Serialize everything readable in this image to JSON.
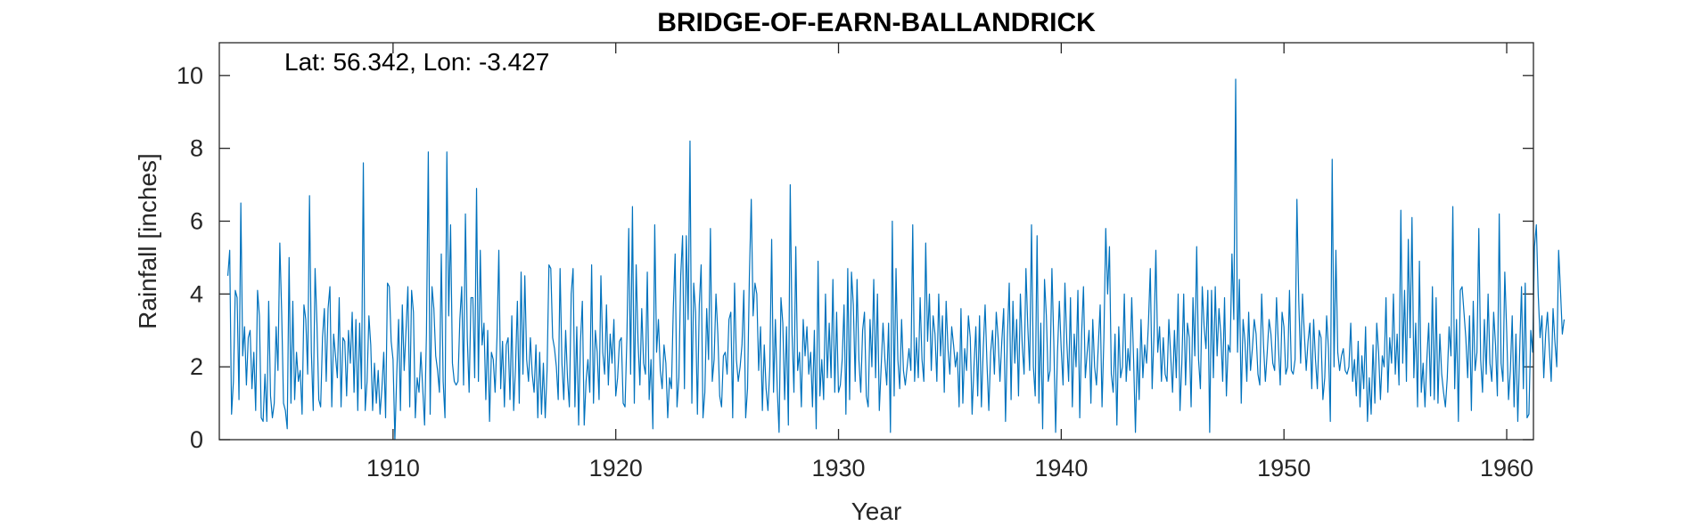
{
  "chart_data": {
    "type": "line",
    "title": "BRIDGE-OF-EARN-BALLANDRICK",
    "annotation": "Lat: 56.342, Lon: -3.427",
    "xlabel": "Year",
    "ylabel": "Rainfall [inches]",
    "xlim": [
      1902.2,
      1961.2
    ],
    "ylim": [
      0,
      10.9
    ],
    "xticks": [
      1910,
      1920,
      1930,
      1940,
      1950,
      1960
    ],
    "yticks": [
      0,
      2,
      4,
      6,
      8,
      10
    ],
    "grid": false,
    "line_color": "#0072BD",
    "series": [
      {
        "x_start": 1902.583,
        "x_step": 0.08333,
        "values": [
          4.5,
          5.2,
          0.7,
          1.6,
          4.1,
          3.9,
          1.1,
          6.5,
          2.3,
          3.1,
          1.5,
          2.8,
          3.0,
          1.4,
          2.4,
          0.8,
          4.1,
          3.4,
          0.6,
          0.5,
          1.8,
          0.5,
          3.8,
          1.2,
          0.6,
          1.0,
          3.1,
          1.9,
          5.4,
          3.5,
          1.0,
          0.8,
          0.3,
          5.0,
          1.0,
          3.8,
          1.1,
          2.4,
          1.6,
          1.9,
          0.7,
          3.7,
          3.3,
          1.8,
          6.7,
          2.4,
          0.8,
          4.7,
          3.2,
          1.1,
          0.9,
          2.8,
          3.6,
          1.6,
          3.6,
          4.2,
          0.9,
          2.9,
          2.3,
          1.7,
          3.9,
          0.9,
          2.8,
          2.7,
          1.2,
          3.0,
          2.1,
          3.5,
          1.3,
          3.3,
          0.8,
          3.2,
          1.4,
          7.6,
          0.8,
          1.6,
          3.4,
          2.6,
          0.8,
          2.1,
          1.0,
          1.9,
          0.7,
          1.4,
          2.4,
          0.6,
          4.3,
          4.2,
          2.7,
          2.2,
          0.0,
          1.8,
          3.3,
          0.8,
          3.7,
          1.9,
          3.0,
          4.2,
          0.9,
          4.1,
          3.5,
          0.6,
          1.7,
          1.3,
          2.4,
          1.4,
          0.4,
          2.9,
          7.9,
          0.7,
          4.2,
          3.6,
          2.3,
          1.9,
          1.3,
          5.1,
          1.6,
          0.6,
          7.9,
          3.4,
          5.9,
          2.1,
          1.6,
          1.5,
          1.6,
          3.3,
          4.2,
          1.5,
          6.2,
          2.8,
          1.3,
          3.9,
          3.9,
          1.7,
          6.9,
          1.6,
          5.2,
          2.6,
          3.2,
          1.1,
          3.0,
          0.5,
          2.4,
          2.2,
          1.3,
          2.8,
          5.2,
          1.4,
          2.7,
          0.9,
          2.6,
          2.8,
          1.1,
          3.4,
          0.8,
          2.0,
          3.8,
          1.0,
          4.6,
          1.8,
          4.5,
          2.2,
          1.6,
          2.8,
          1.8,
          1.3,
          2.6,
          0.6,
          2.4,
          0.7,
          2.1,
          0.6,
          1.9,
          4.8,
          4.7,
          2.8,
          2.5,
          2.0,
          1.1,
          4.7,
          2.1,
          1.1,
          3.0,
          1.7,
          0.9,
          4.0,
          4.7,
          0.9,
          3.1,
          0.4,
          2.7,
          3.8,
          0.4,
          1.6,
          2.2,
          1.3,
          4.8,
          1.0,
          3.0,
          2.4,
          1.1,
          4.5,
          2.4,
          1.8,
          3.7,
          1.5,
          2.9,
          2.1,
          3.3,
          1.2,
          1.7,
          2.7,
          2.8,
          1.0,
          0.9,
          2.8,
          5.8,
          1.8,
          6.4,
          1.0,
          4.8,
          2.7,
          1.5,
          3.6,
          2.1,
          1.8,
          4.6,
          1.1,
          2.2,
          0.3,
          5.9,
          2.4,
          3.3,
          1.9,
          1.4,
          2.6,
          2.1,
          0.6,
          1.7,
          1.4,
          3.6,
          5.1,
          0.9,
          1.7,
          4.5,
          5.6,
          1.4,
          5.6,
          3.3,
          8.2,
          1.0,
          4.3,
          3.5,
          0.7,
          3.7,
          4.8,
          0.6,
          1.3,
          3.6,
          2.2,
          5.8,
          1.6,
          2.2,
          4.0,
          2.9,
          1.2,
          0.9,
          2.3,
          2.4,
          1.8,
          3.3,
          3.5,
          0.6,
          4.3,
          2.2,
          1.6,
          2.0,
          2.6,
          4.1,
          0.6,
          1.4,
          4.5,
          6.6,
          3.4,
          4.3,
          4.0,
          1.9,
          3.1,
          0.8,
          2.6,
          1.4,
          0.8,
          2.0,
          5.5,
          1.3,
          3.3,
          1.4,
          0.2,
          3.9,
          3.2,
          1.1,
          3.1,
          0.4,
          7.0,
          2.9,
          1.3,
          5.3,
          1.9,
          2.4,
          0.9,
          3.3,
          2.3,
          3.1,
          1.8,
          2.4,
          0.9,
          3.0,
          0.3,
          4.9,
          1.2,
          2.2,
          1.1,
          4.0,
          1.7,
          3.2,
          1.7,
          4.4,
          1.3,
          3.5,
          1.3,
          1.5,
          2.2,
          3.7,
          0.7,
          4.7,
          1.1,
          4.6,
          3.7,
          1.6,
          4.4,
          2.2,
          1.3,
          3.0,
          3.5,
          1.2,
          0.9,
          3.3,
          2.0,
          4.4,
          1.7,
          4.0,
          0.8,
          2.0,
          3.2,
          2.2,
          1.5,
          3.2,
          0.2,
          6.0,
          1.2,
          4.7,
          2.2,
          1.4,
          3.3,
          1.9,
          1.5,
          2.0,
          2.5,
          1.9,
          5.9,
          1.6,
          2.8,
          1.7,
          3.9,
          2.2,
          1.6,
          5.4,
          2.7,
          4.0,
          1.9,
          3.4,
          2.9,
          1.6,
          4.0,
          2.3,
          3.4,
          1.3,
          3.8,
          2.5,
          1.8,
          3.1,
          2.6,
          2.0,
          2.4,
          0.9,
          3.6,
          1.0,
          2.5,
          1.9,
          3.4,
          2.8,
          0.7,
          2.0,
          3.1,
          1.2,
          3.4,
          0.9,
          2.5,
          3.7,
          2.1,
          0.8,
          2.4,
          3.0,
          1.8,
          3.5,
          2.8,
          1.6,
          2.7,
          3.6,
          0.5,
          2.8,
          4.3,
          1.1,
          3.8,
          2.1,
          3.3,
          1.2,
          4.0,
          2.6,
          1.8,
          4.7,
          3.1,
          1.9,
          5.9,
          2.0,
          1.2,
          5.6,
          1.0,
          3.2,
          0.3,
          4.4,
          3.4,
          1.6,
          1.9,
          4.7,
          2.7,
          0.2,
          2.4,
          3.8,
          2.5,
          1.5,
          4.3,
          2.7,
          1.6,
          3.9,
          0.9,
          2.9,
          2.0,
          4.1,
          0.6,
          2.9,
          4.2,
          1.7,
          2.4,
          3.0,
          1.0,
          3.3,
          2.0,
          1.5,
          2.6,
          3.7,
          0.9,
          2.8,
          5.8,
          4.0,
          5.3,
          1.8,
          1.3,
          2.9,
          0.4,
          3.1,
          1.7,
          2.0,
          4.0,
          1.6,
          2.5,
          1.9,
          3.9,
          2.2,
          0.2,
          2.5,
          1.1,
          3.3,
          1.7,
          2.6,
          2.1,
          3.2,
          4.7,
          1.4,
          2.9,
          5.2,
          2.4,
          3.1,
          1.6,
          2.8,
          1.8,
          1.6,
          3.3,
          2.3,
          1.3,
          3.0,
          1.7,
          4.0,
          0.8,
          2.1,
          4.0,
          1.5,
          3.2,
          2.8,
          0.9,
          3.9,
          2.3,
          5.3,
          2.2,
          1.4,
          4.2,
          3.1,
          2.5,
          4.1,
          0.2,
          4.1,
          1.7,
          4.2,
          2.3,
          3.6,
          2.9,
          1.6,
          3.9,
          1.2,
          2.6,
          2.4,
          5.1,
          3.3,
          9.9,
          2.4,
          4.4,
          1.0,
          3.3,
          2.7,
          1.6,
          3.5,
          1.9,
          2.5,
          3.3,
          2.9,
          1.8,
          1.5,
          4.0,
          2.6,
          1.6,
          2.4,
          3.3,
          2.9,
          2.1,
          1.9,
          3.9,
          2.6,
          1.5,
          3.5,
          3.1,
          1.8,
          2.0,
          4.1,
          1.9,
          1.8,
          2.2,
          6.6,
          3.8,
          2.1,
          4.0,
          2.9,
          1.9,
          2.7,
          3.2,
          1.4,
          3.3,
          2.2,
          1.4,
          3.0,
          2.8,
          1.1,
          1.7,
          3.4,
          2.5,
          0.5,
          7.7,
          2.0,
          5.2,
          2.4,
          1.9,
          2.3,
          2.5,
          1.9,
          1.8,
          2.0,
          3.2,
          1.6,
          2.2,
          1.2,
          2.7,
          0.9,
          2.3,
          1.4,
          3.1,
          0.5,
          1.7,
          0.7,
          2.6,
          1.0,
          3.2,
          2.4,
          1.1,
          2.3,
          2.0,
          3.9,
          1.3,
          2.8,
          2.1,
          4.0,
          1.8,
          2.9,
          1.5,
          6.3,
          2.1,
          4.1,
          1.6,
          5.5,
          2.8,
          6.1,
          1.7,
          3.2,
          0.9,
          4.9,
          1.3,
          2.1,
          0.9,
          2.2,
          3.2,
          1.2,
          4.2,
          1.1,
          3.9,
          1.0,
          2.9,
          1.8,
          1.3,
          0.9,
          1.7,
          3.1,
          2.3,
          6.4,
          1.4,
          3.3,
          0.5,
          4.1,
          4.2,
          3.5,
          2.8,
          1.7,
          3.4,
          0.8,
          3.8,
          1.9,
          2.4,
          5.8,
          2.2,
          1.3,
          3.3,
          1.8,
          4.0,
          2.1,
          1.6,
          3.5,
          2.6,
          1.2,
          6.2,
          2.1,
          1.6,
          4.6,
          3.0,
          1.1,
          1.9,
          3.4,
          0.9,
          2.9,
          0.5,
          2.4,
          4.2,
          1.4,
          4.3,
          0.6,
          0.7,
          3.0,
          2.4,
          5.3,
          5.9,
          4.0,
          2.8,
          3.4,
          1.7,
          2.9,
          3.5,
          2.5,
          1.6,
          3.6,
          2.7,
          2.0,
          5.2,
          4.1,
          2.9,
          3.3
        ]
      }
    ]
  }
}
